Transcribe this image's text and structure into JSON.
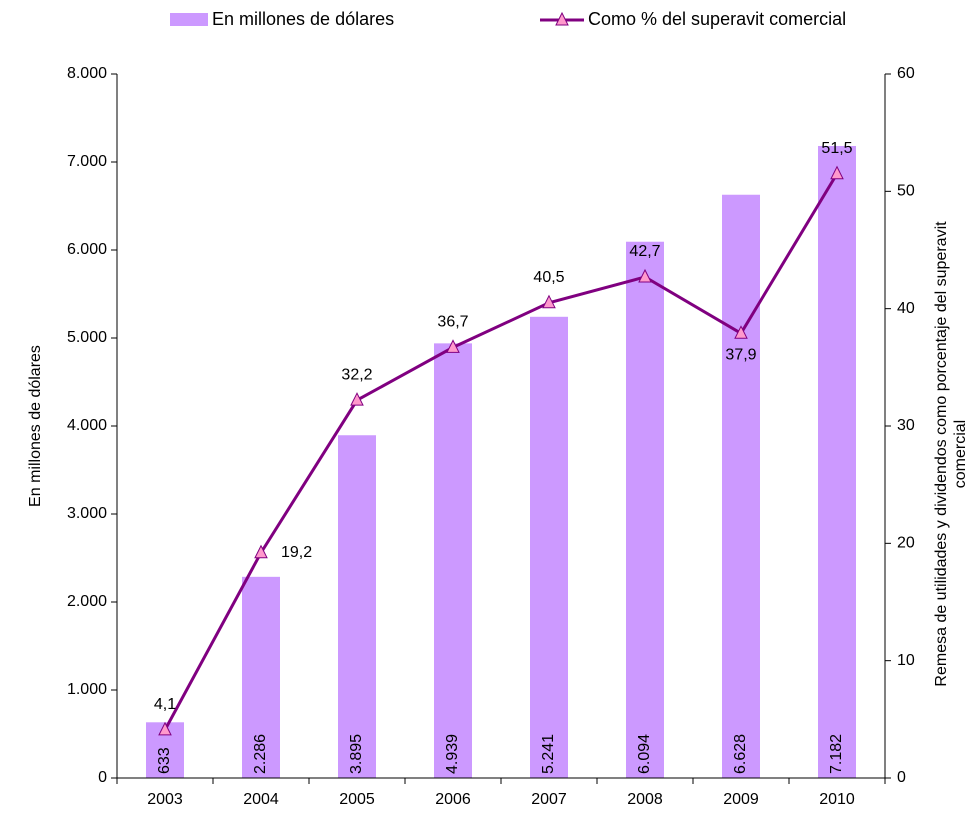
{
  "chart_data": {
    "type": "bar-line",
    "categories": [
      "2003",
      "2004",
      "2005",
      "2006",
      "2007",
      "2008",
      "2009",
      "2010"
    ],
    "ylabel": "En millones de dólares",
    "y2label": [
      "Remesa de utilidades y dividendos como porcentaje del superavit",
      "comercial"
    ],
    "ylim": [
      0,
      8000
    ],
    "yticks": [
      0,
      {
        "value": 1000,
        "label": "1.000"
      },
      {
        "value": 2000,
        "label": "2.000"
      },
      {
        "value": 3000,
        "label": "3.000"
      },
      {
        "value": 4000,
        "label": "4.000"
      },
      {
        "value": 5000,
        "label": "5.000"
      },
      {
        "value": 6000,
        "label": "6.000"
      },
      {
        "value": 7000,
        "label": "7.000"
      },
      {
        "value": 8000,
        "label": "8.000"
      }
    ],
    "y2lim": [
      0,
      60
    ],
    "y2ticks": [
      0,
      10,
      20,
      30,
      40,
      50,
      60
    ],
    "series": [
      {
        "name": "En millones de dólares",
        "type": "bar",
        "color": "#cc99ff",
        "values": [
          633,
          2286,
          3895,
          4939,
          5241,
          6094,
          6628,
          7182
        ],
        "value_labels": [
          "633",
          "2.286",
          "3.895",
          "4.939",
          "5.241",
          "6.094",
          "6.628",
          "7.182"
        ]
      },
      {
        "name": "Como % del superavit comercial",
        "type": "line",
        "axis": "y2",
        "color": "#800080",
        "marker_color": "#ff99cc",
        "values": [
          4.1,
          19.2,
          32.2,
          36.7,
          40.5,
          42.7,
          37.9,
          51.5
        ],
        "value_labels": [
          "4,1",
          "19,2",
          "32,2",
          "36,7",
          "40,5",
          "42,7",
          "37,9",
          "51,5"
        ]
      }
    ]
  }
}
